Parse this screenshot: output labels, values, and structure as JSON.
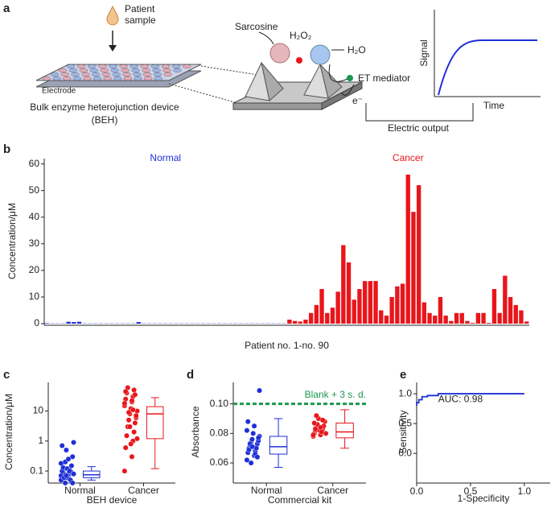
{
  "diagram": {
    "panel": "a",
    "sample_label": [
      "Patient",
      "sample"
    ],
    "electrode_label": "Electrode",
    "device_caption": [
      "Bulk enzyme heterojunction device",
      "(BEH)"
    ],
    "substrate": "Sarcosine",
    "peroxide": "H₂O₂",
    "water": "H₂O",
    "mediator": "ET mediator",
    "electron": "e⁻",
    "signal_axis": "Signal",
    "time_axis": "Time",
    "output": "Electric output"
  },
  "chart_data": [
    {
      "panel": "b",
      "type": "bar",
      "ylabel": "Concentration/μM",
      "xlabel": "Patient no. 1-no. 90",
      "categories": [
        null,
        null,
        null,
        null,
        null,
        null,
        null,
        null,
        null,
        null,
        null,
        null,
        null,
        null,
        null,
        null,
        null,
        null,
        null,
        null,
        null,
        null,
        null,
        null,
        null,
        null,
        null,
        null,
        null,
        null,
        null,
        null,
        null,
        null,
        null,
        null,
        null,
        null,
        null,
        null,
        null,
        null,
        null,
        null,
        null,
        null,
        null,
        null,
        null,
        null,
        null,
        null,
        null,
        null,
        null,
        null,
        null,
        null,
        null,
        null,
        null,
        null,
        null,
        null,
        null,
        null,
        null,
        null,
        null,
        null,
        null,
        null,
        null,
        null,
        null,
        null,
        null,
        null,
        null,
        null,
        null,
        null,
        null,
        null,
        null,
        null,
        null,
        null,
        null,
        null
      ],
      "series": [
        {
          "name": "Normal",
          "color": "#1f2fd6",
          "values": [
            0.2,
            0.1,
            0.1,
            0.1,
            0.7,
            0.6,
            0.7,
            0.1,
            0.1,
            0.1,
            0.1,
            0.1,
            0.1,
            0.1,
            0.1,
            0.1,
            0.1,
            0.6,
            0.1,
            0.1,
            0.1,
            0.1,
            0.1,
            0.1,
            0.1,
            0.1,
            0.1,
            0.1,
            0.1,
            0.1,
            0.1,
            0.1,
            0.1,
            0.1,
            0.1,
            0.1,
            0.1,
            0.1,
            0.1,
            0.1,
            0.1,
            0.1,
            0.1,
            0.1,
            0.1,
            null,
            null,
            null,
            null,
            null,
            null,
            null,
            null,
            null,
            null,
            null,
            null,
            null,
            null,
            null,
            null,
            null,
            null,
            null,
            null,
            null,
            null,
            null,
            null,
            null,
            null,
            null,
            null,
            null,
            null,
            null,
            null,
            null,
            null,
            null,
            null,
            null,
            null,
            null,
            null,
            null,
            null,
            null,
            null,
            null
          ]
        },
        {
          "name": "Cancer",
          "color": "#e8161b",
          "values": [
            null,
            null,
            null,
            null,
            null,
            null,
            null,
            null,
            null,
            null,
            null,
            null,
            null,
            null,
            null,
            null,
            null,
            null,
            null,
            null,
            null,
            null,
            null,
            null,
            null,
            null,
            null,
            null,
            null,
            null,
            null,
            null,
            null,
            null,
            null,
            null,
            null,
            null,
            null,
            null,
            null,
            null,
            null,
            null,
            null,
            1.5,
            1,
            0.8,
            1.5,
            4,
            7,
            13,
            4,
            6,
            12,
            29.5,
            23,
            9,
            13,
            16,
            16,
            16,
            5,
            3,
            10,
            14,
            15,
            56,
            42,
            52,
            8,
            4,
            3,
            10,
            3,
            1,
            4,
            4,
            1,
            0.3,
            4,
            4,
            0.3,
            13,
            4,
            18,
            10,
            7,
            5,
            0.8
          ]
        }
      ],
      "ylim": [
        0,
        62
      ],
      "yticks": [
        0,
        10,
        20,
        30,
        40,
        50,
        60
      ]
    },
    {
      "panel": "c",
      "type": "box",
      "log_y": true,
      "ylabel": "Concentration/μM",
      "xlabel": "BEH device",
      "categories": [
        "Normal",
        "Cancer"
      ],
      "groups": [
        {
          "color": "#1f2fd6",
          "points": [
            0.05,
            0.06,
            0.07,
            0.08,
            0.09,
            0.1,
            0.12,
            0.15,
            0.2,
            0.3,
            0.5,
            0.9,
            0.06,
            0.07,
            0.08,
            0.1,
            0.11,
            0.13,
            0.05,
            0.06,
            0.09,
            0.04,
            0.04,
            0.07,
            0.08,
            0.12,
            0.18,
            0.25,
            0.7,
            0.1
          ],
          "box": {
            "low": 0.05,
            "q1": 0.06,
            "median": 0.075,
            "q3": 0.1,
            "high": 0.14
          }
        },
        {
          "color": "#e8161b",
          "points": [
            0.1,
            0.3,
            0.6,
            1,
            1.5,
            2,
            3,
            4,
            5,
            6,
            8,
            10,
            12,
            15,
            20,
            25,
            30,
            40,
            50,
            60,
            35,
            9,
            7,
            3,
            1.2,
            0.8,
            18,
            22,
            45,
            11
          ],
          "box": {
            "low": 0.12,
            "q1": 1.2,
            "median": 8,
            "q3": 14,
            "high": 28
          }
        }
      ],
      "ylim": [
        0.045,
        90
      ],
      "yticks": [
        0.1,
        1,
        10
      ]
    },
    {
      "panel": "d",
      "type": "box",
      "ylabel": "Absorbance",
      "xlabel": "Commercial kit",
      "categories": [
        "Normal",
        "Cancer"
      ],
      "groups": [
        {
          "color": "#1f2fd6",
          "points": [
            0.062,
            0.065,
            0.067,
            0.068,
            0.07,
            0.071,
            0.072,
            0.073,
            0.074,
            0.075,
            0.076,
            0.078,
            0.08,
            0.082,
            0.085,
            0.088,
            0.066,
            0.069,
            0.07,
            0.073,
            0.064,
            0.06,
            0.077,
            0.071,
            0.109
          ],
          "box": {
            "low": 0.057,
            "q1": 0.066,
            "median": 0.071,
            "q3": 0.078,
            "high": 0.09
          }
        },
        {
          "color": "#e8161b",
          "points": [
            0.078,
            0.079,
            0.08,
            0.081,
            0.082,
            0.083,
            0.084,
            0.085,
            0.086,
            0.088,
            0.09,
            0.08,
            0.082,
            0.079,
            0.084,
            0.087,
            0.081,
            0.083,
            0.089,
            0.092
          ],
          "box": {
            "low": 0.07,
            "q1": 0.077,
            "median": 0.081,
            "q3": 0.087,
            "high": 0.096
          }
        }
      ],
      "reference_line": {
        "value": 0.1,
        "label": "Blank + 3 s. d.",
        "color": "#1a9850"
      },
      "ylim": [
        0.0475,
        0.1145
      ],
      "yticks": [
        0.06,
        0.08,
        {
          "value": 0.1,
          "label": "0.10"
        }
      ]
    },
    {
      "panel": "e",
      "type": "line",
      "ylabel": "Sensitivity",
      "xlabel": "1-Specificity",
      "color": "#1f2fd6",
      "x": [
        0,
        0,
        0.02,
        0.02,
        0.05,
        0.05,
        0.1,
        0.1,
        0.2,
        0.2,
        1.0
      ],
      "y": [
        0.8,
        0.85,
        0.85,
        0.9,
        0.9,
        0.95,
        0.95,
        0.97,
        0.97,
        1,
        1
      ],
      "annotation": "AUC: 0.98",
      "xlim": [
        0,
        1.24
      ],
      "xticks": [
        {
          "value": 0,
          "label": "0.0"
        },
        0.5,
        {
          "value": 1,
          "label": "1.0"
        }
      ],
      "ylim": [
        -0.47,
        1.19
      ],
      "yticks": [
        {
          "value": 0,
          "label": "0.0"
        },
        0.5,
        {
          "value": 1,
          "label": "1.0"
        }
      ]
    }
  ]
}
